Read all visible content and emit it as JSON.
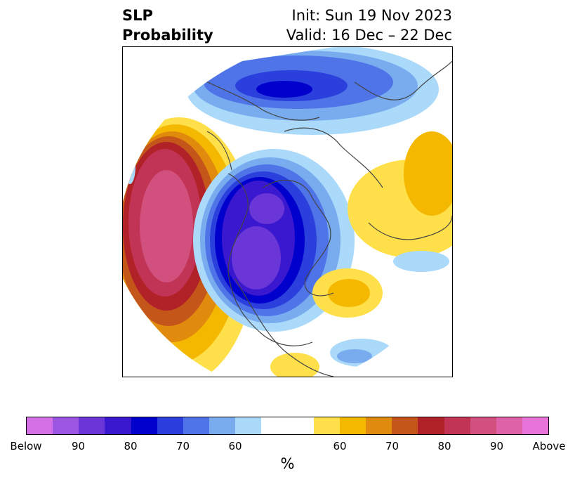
{
  "title": {
    "left_line1": "SLP",
    "left_line2": "Probability",
    "right_line1": "Init: Sun 19 Nov 2023",
    "right_line2": "Valid: 16 Dec – 22 Dec"
  },
  "colorbar": {
    "unit": "%",
    "colors": [
      "#d56fe6",
      "#9b55e0",
      "#6a36d8",
      "#3a18cf",
      "#0000cd",
      "#2a3fdc",
      "#4f74e8",
      "#78acef",
      "#aad9fa",
      "#ffffff",
      "#ffffff",
      "#ffe04a",
      "#f5b800",
      "#e08a0e",
      "#c4561a",
      "#b02228",
      "#c23455",
      "#d2507d",
      "#dd62a8",
      "#e874da"
    ],
    "widths": [
      1,
      1,
      1,
      1,
      1,
      1,
      1,
      1,
      1,
      1,
      1,
      1,
      1,
      1,
      1,
      1,
      1,
      1,
      1,
      1
    ],
    "ticks": [
      "Below",
      "90",
      "80",
      "70",
      "60",
      "60",
      "70",
      "80",
      "90",
      "Above"
    ],
    "tick_fracs": [
      0,
      0.1,
      0.2,
      0.3,
      0.4,
      0.6,
      0.7,
      0.8,
      0.9,
      1.0
    ]
  },
  "icons": {
    "map": "polar-stereographic-globe"
  }
}
